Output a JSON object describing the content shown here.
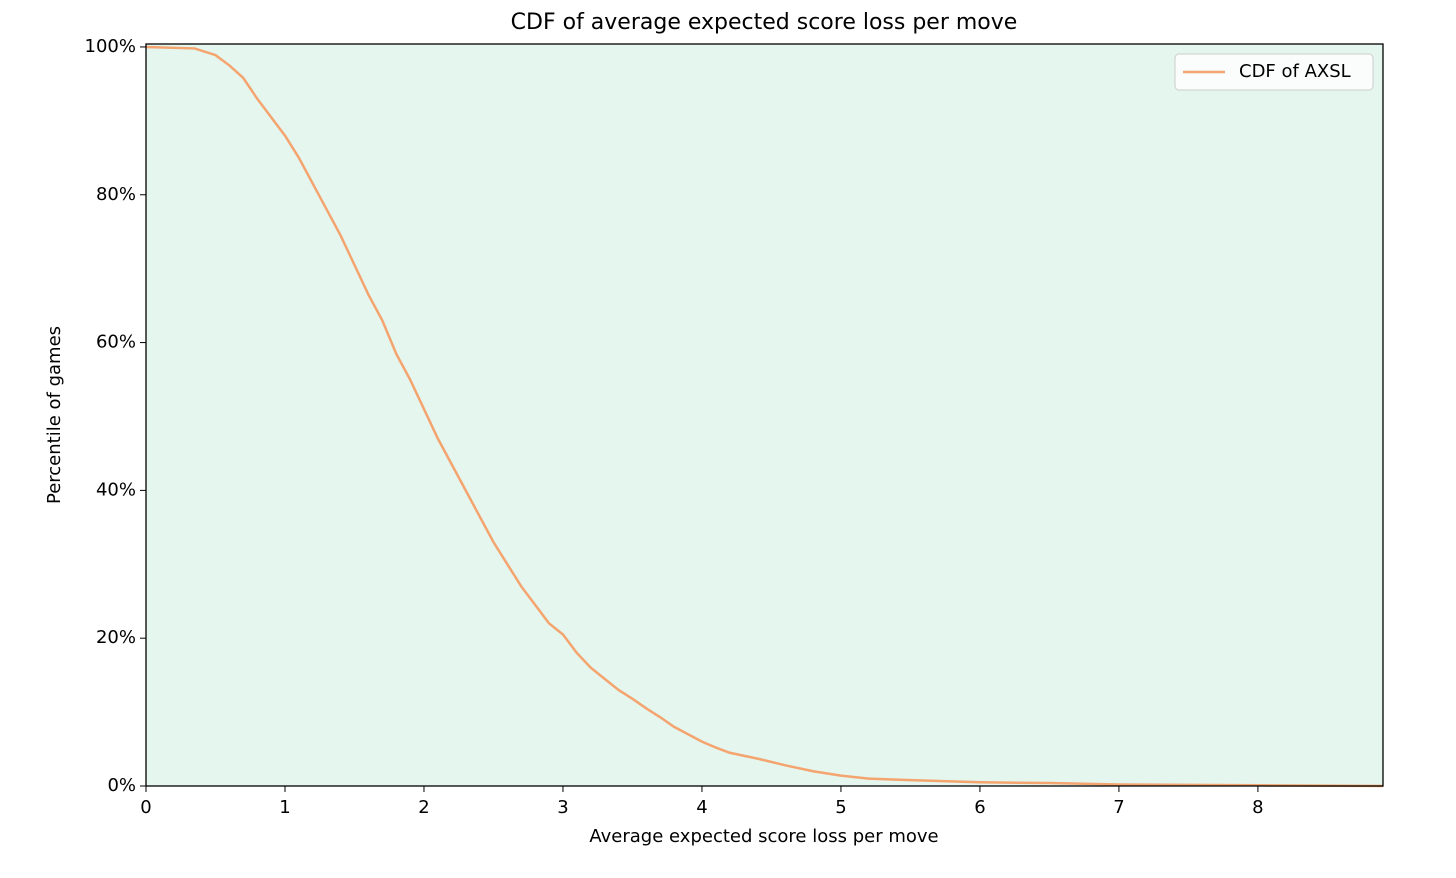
{
  "chart_data": {
    "type": "line",
    "title": "CDF of average expected score loss per move",
    "x_label": "Average expected score loss per move",
    "y_label": "Percentile of games",
    "x": [
      0,
      0.35,
      0.5,
      0.6,
      0.7,
      0.8,
      0.9,
      1.0,
      1.1,
      1.2,
      1.3,
      1.4,
      1.5,
      1.6,
      1.7,
      1.8,
      1.9,
      2.0,
      2.1,
      2.2,
      2.3,
      2.4,
      2.5,
      2.6,
      2.7,
      2.8,
      2.9,
      3.0,
      3.1,
      3.2,
      3.3,
      3.4,
      3.5,
      3.6,
      3.7,
      3.8,
      3.9,
      4.0,
      4.1,
      4.2,
      4.4,
      4.6,
      4.8,
      5.0,
      5.2,
      5.5,
      6.0,
      6.5,
      7.0,
      8.0,
      8.9
    ],
    "series": [
      {
        "name": "CDF of AXSL",
        "color": "#f4a46e",
        "values": [
          100,
          99.8,
          98.9,
          97.5,
          95.8,
          93,
          90.5,
          88,
          85,
          81.5,
          78,
          74.5,
          70.5,
          66.5,
          63,
          58.5,
          55,
          51,
          47,
          43.5,
          40,
          36.5,
          33,
          30,
          27,
          24.5,
          22,
          20.5,
          18,
          16,
          14.5,
          13,
          11.8,
          10.5,
          9.3,
          8,
          7,
          6,
          5.2,
          4.5,
          3.7,
          2.8,
          2,
          1.4,
          1.0,
          0.8,
          0.5,
          0.4,
          0.2,
          0.1,
          0
        ]
      }
    ],
    "xlim": [
      0,
      8.9
    ],
    "ylim": [
      0,
      100.4
    ],
    "xticks": [
      0,
      1,
      2,
      3,
      4,
      5,
      6,
      7,
      8
    ],
    "yticks": [
      {
        "value": 0,
        "label": "0%"
      },
      {
        "value": 20,
        "label": "20%"
      },
      {
        "value": 40,
        "label": "40%"
      },
      {
        "value": 60,
        "label": "60%"
      },
      {
        "value": 80,
        "label": "80%"
      },
      {
        "value": 100,
        "label": "100%"
      }
    ],
    "plot_background": "#e5f6ef",
    "legend": "upper right",
    "grid": false
  }
}
